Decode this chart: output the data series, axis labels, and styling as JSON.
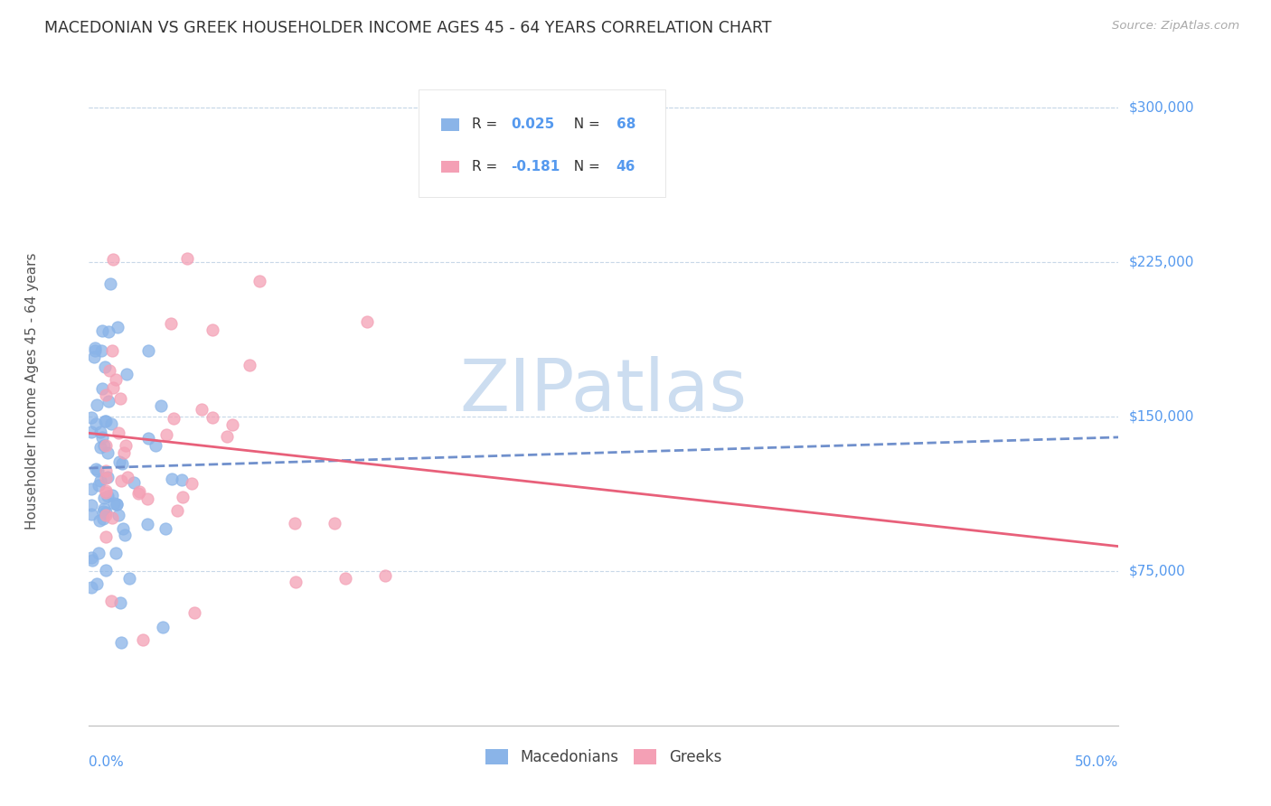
{
  "title": "MACEDONIAN VS GREEK HOUSEHOLDER INCOME AGES 45 - 64 YEARS CORRELATION CHART",
  "source": "Source: ZipAtlas.com",
  "ylabel": "Householder Income Ages 45 - 64 years",
  "xlim": [
    0.0,
    0.5
  ],
  "ylim": [
    0,
    325000
  ],
  "yticks": [
    75000,
    150000,
    225000,
    300000
  ],
  "ytick_labels": [
    "$75,000",
    "$150,000",
    "$225,000",
    "$300,000"
  ],
  "background_color": "#ffffff",
  "grid_color": "#c8d8e8",
  "macedonian_color": "#8ab4e8",
  "greek_color": "#f4a0b5",
  "macedonian_line_color": "#7090cc",
  "greek_line_color": "#e8607a",
  "axis_color": "#5599ee",
  "title_color": "#333333",
  "watermark_color": "#ccddf0",
  "mac_line_x0": 0.0,
  "mac_line_y0": 125000,
  "mac_line_x1": 0.5,
  "mac_line_y1": 140000,
  "grk_line_x0": 0.0,
  "grk_line_y0": 142000,
  "grk_line_x1": 0.5,
  "grk_line_y1": 87000,
  "legend_R_mac": "R = 0.025",
  "legend_N_mac": "N = 68",
  "legend_R_grk": "R = -0.181",
  "legend_N_grk": "N = 46"
}
